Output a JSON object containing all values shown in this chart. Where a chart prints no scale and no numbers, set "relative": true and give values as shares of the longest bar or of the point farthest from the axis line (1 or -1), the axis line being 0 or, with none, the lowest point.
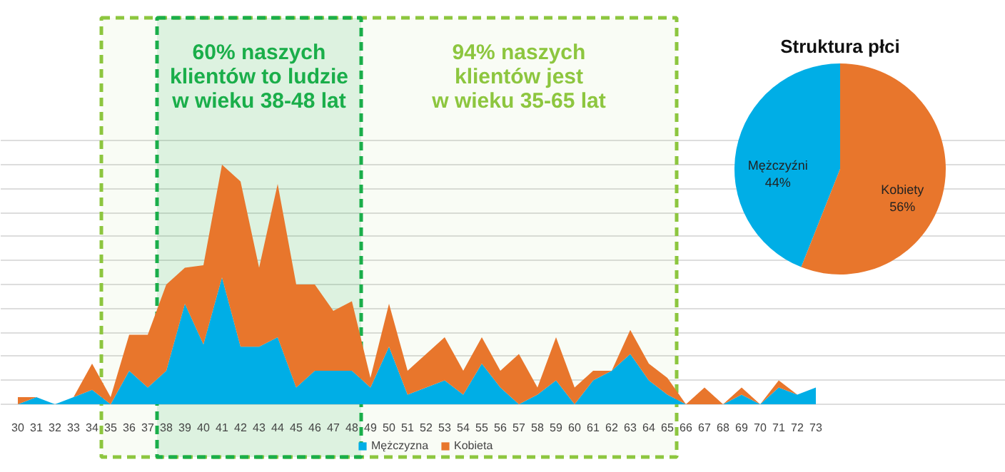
{
  "chart_data": [
    {
      "type": "area",
      "stacked": true,
      "relative": true,
      "grid": "y",
      "legend": "bottom",
      "categories": [
        "30",
        "31",
        "32",
        "33",
        "34",
        "35",
        "36",
        "37",
        "38",
        "39",
        "40",
        "41",
        "42",
        "43",
        "44",
        "45",
        "46",
        "47",
        "48",
        "49",
        "50",
        "51",
        "52",
        "53",
        "54",
        "55",
        "56",
        "57",
        "58",
        "59",
        "60",
        "61",
        "62",
        "63",
        "64",
        "65",
        "66",
        "67",
        "68",
        "69",
        "70",
        "71",
        "72",
        "73"
      ],
      "series": [
        {
          "name": "Mężczyzna",
          "color": "#00aee6",
          "values": [
            0,
            0.03,
            0,
            0.03,
            0.06,
            0,
            0.14,
            0.07,
            0.14,
            0.42,
            0.25,
            0.53,
            0.24,
            0.24,
            0.28,
            0.07,
            0.14,
            0.14,
            0.14,
            0.07,
            0.24,
            0.04,
            0.07,
            0.1,
            0.04,
            0.17,
            0.07,
            0,
            0.04,
            0.1,
            0,
            0.1,
            0.14,
            0.21,
            0.1,
            0.04,
            0,
            0,
            0,
            0.04,
            0,
            0.07,
            0.04,
            0.07
          ]
        },
        {
          "name": "Kobieta",
          "color": "#e8762c",
          "values": [
            0.03,
            0,
            0,
            0,
            0.11,
            0.03,
            0.15,
            0.22,
            0.36,
            0.15,
            0.33,
            0.47,
            0.69,
            0.33,
            0.64,
            0.43,
            0.36,
            0.25,
            0.29,
            0.04,
            0.18,
            0.1,
            0.14,
            0.18,
            0.1,
            0.11,
            0.07,
            0.21,
            0.03,
            0.18,
            0.07,
            0.04,
            0,
            0.1,
            0.07,
            0.07,
            0,
            0.07,
            0,
            0.03,
            0,
            0.03,
            0,
            0
          ]
        }
      ],
      "bands": [
        {
          "axis": "x",
          "from": "35",
          "to": "65",
          "label": "94% naszych\nklientów jest\nw wieku 35-65 lat",
          "color": "#8dc63f"
        },
        {
          "axis": "x",
          "from": "38",
          "to": "48",
          "label": "60% naszych\nklientów to ludzie\nw wieku 38-48 lat",
          "color": "#1aae4a"
        }
      ]
    },
    {
      "type": "pie",
      "title": "Struktura płci",
      "categories": [
        "Mężczyźni",
        "Kobiety"
      ],
      "values": [
        44,
        56
      ],
      "colors": [
        "#00aee6",
        "#e8762c"
      ],
      "value_labels": [
        "44%",
        "56%"
      ]
    }
  ]
}
